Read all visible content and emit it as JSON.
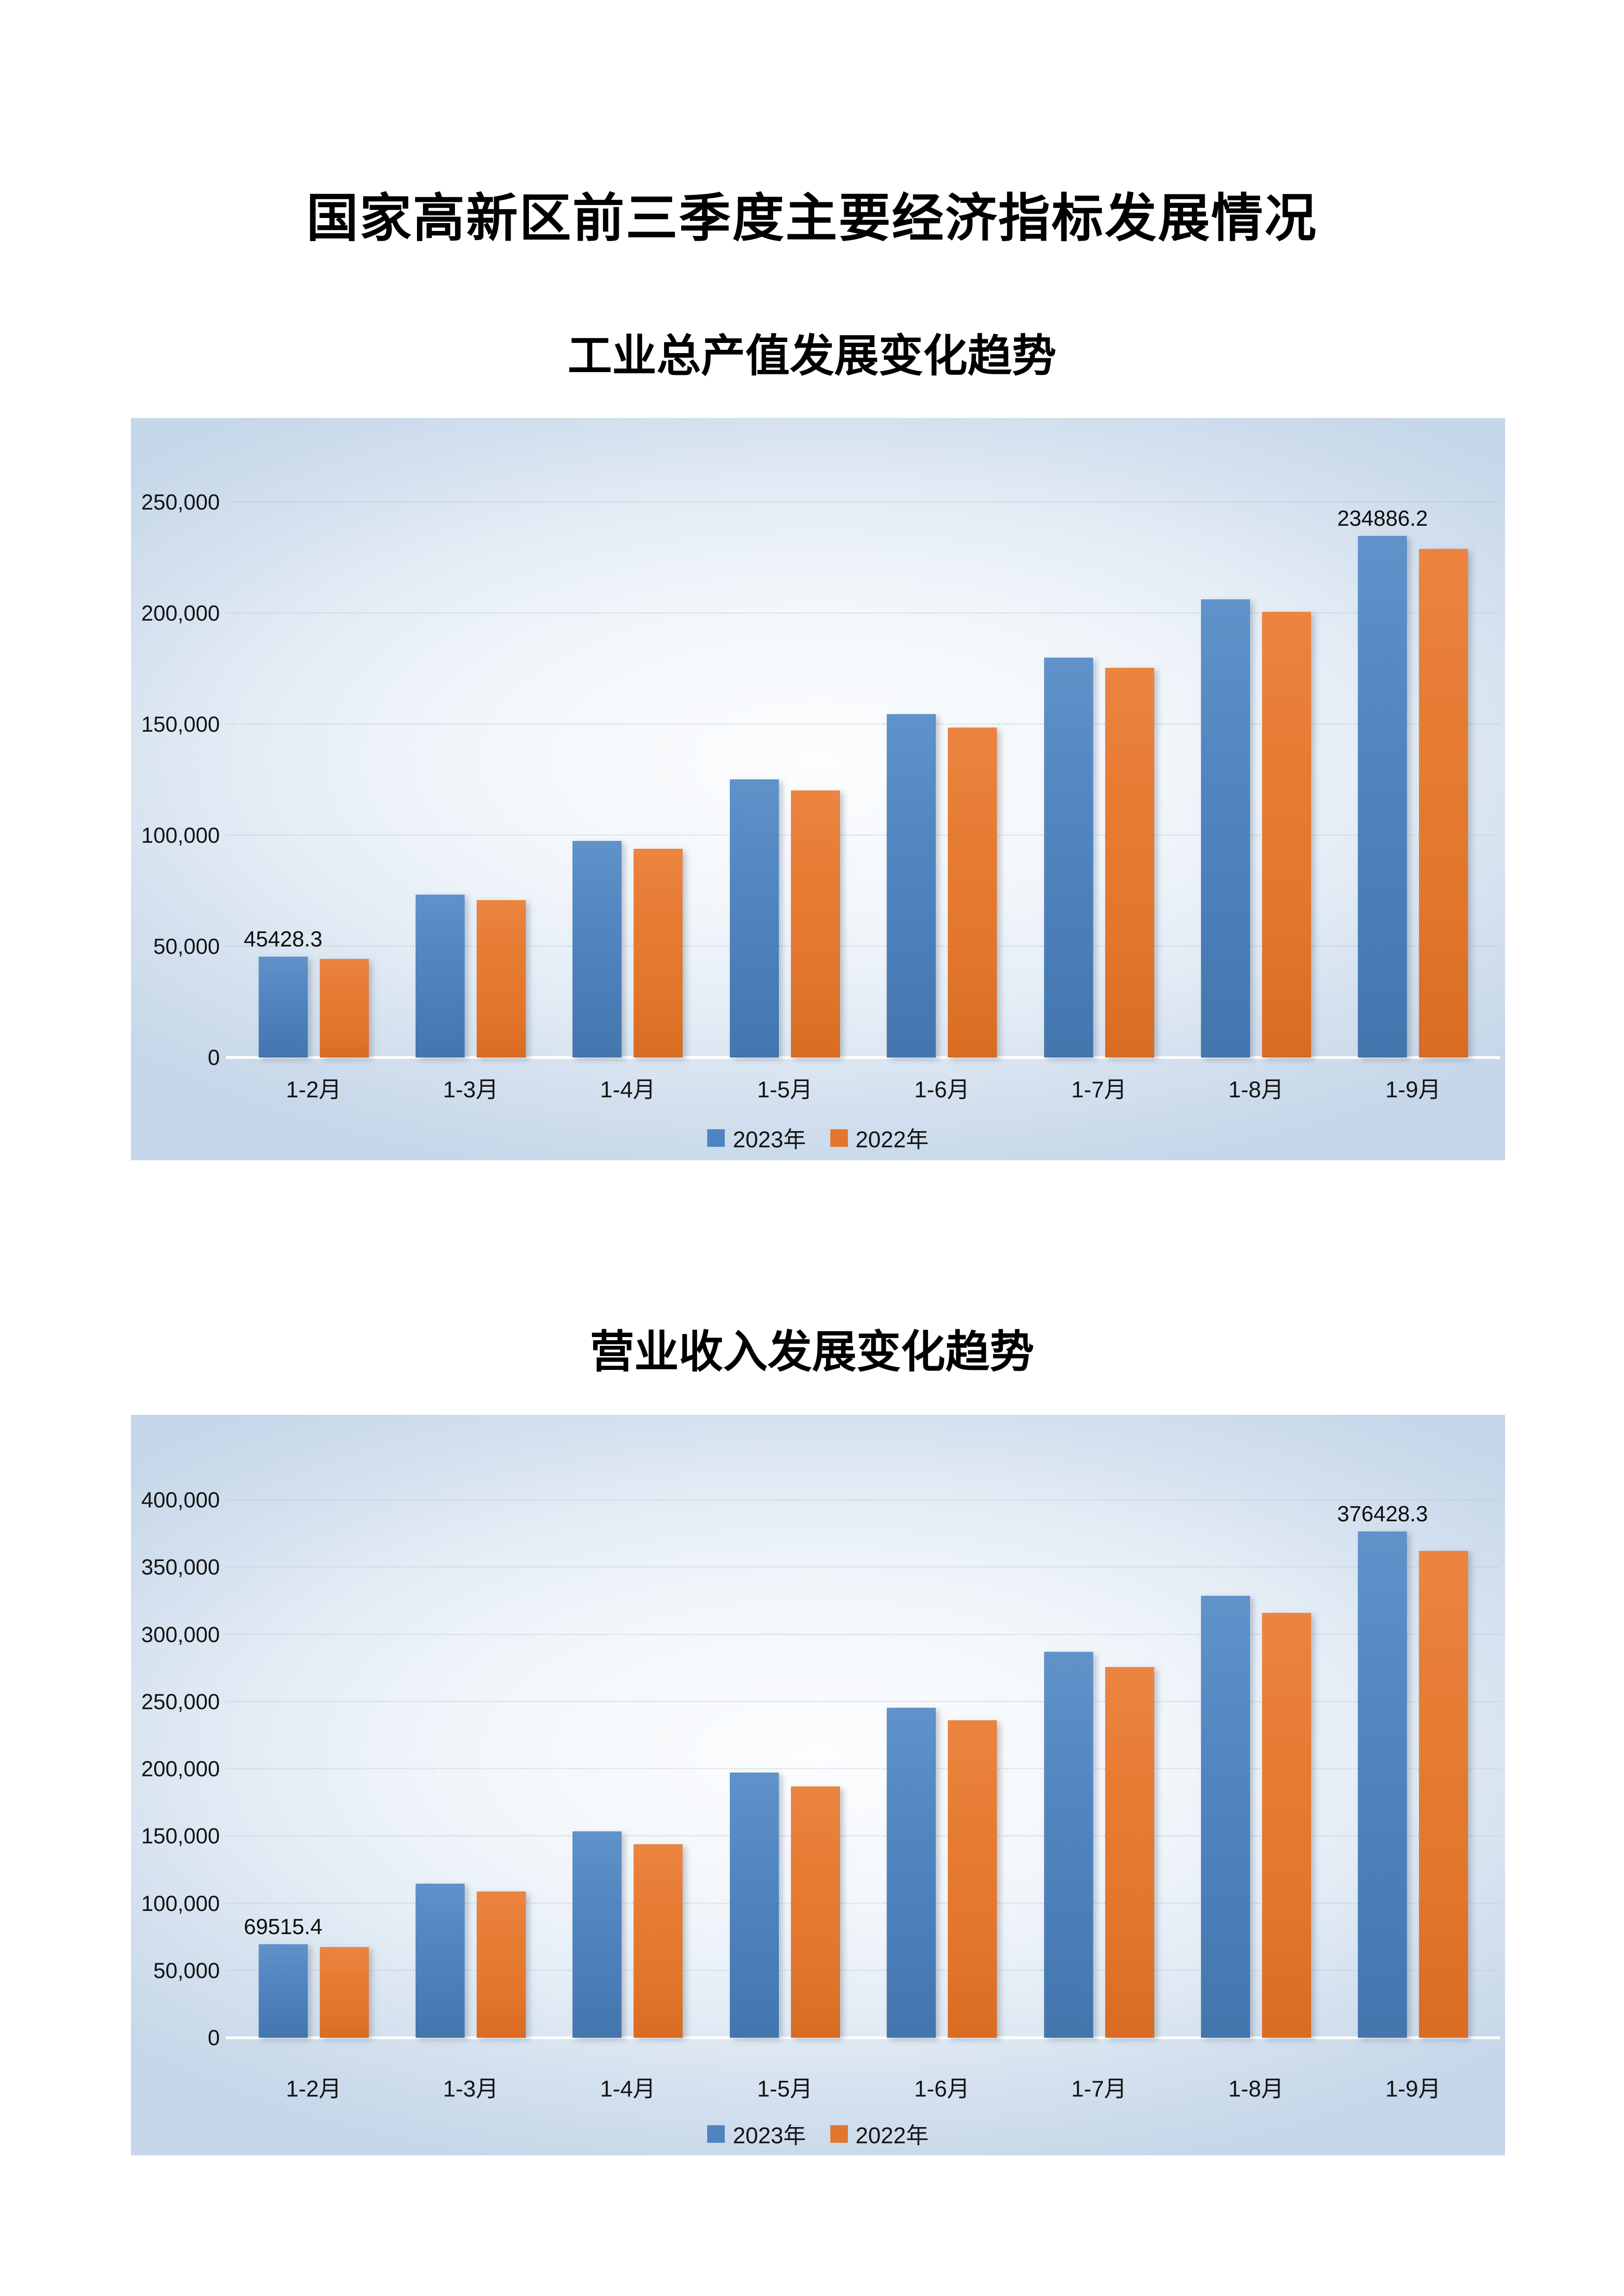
{
  "page": {
    "title": "国家高新区前三季度主要经济指标发展情况"
  },
  "chart_data": [
    {
      "type": "bar",
      "title": "工业总产值发展变化趋势",
      "categories": [
        "1-2月",
        "1-3月",
        "1-4月",
        "1-5月",
        "1-6月",
        "1-7月",
        "1-8月",
        "1-9月"
      ],
      "series": [
        {
          "name": "2023年",
          "color": "#4E84C0",
          "values": [
            45428.3,
            73400,
            97600,
            125300,
            154500,
            180100,
            206300,
            234886.2
          ]
        },
        {
          "name": "2022年",
          "color": "#E3762D",
          "values": [
            44300,
            70800,
            93900,
            120300,
            148600,
            175400,
            200700,
            228900
          ]
        }
      ],
      "data_labels": [
        {
          "series": 0,
          "category_index": 0,
          "text": "45428.3"
        },
        {
          "series": 0,
          "category_index": 7,
          "text": "234886.2"
        }
      ],
      "ylim": [
        0,
        250000
      ],
      "yticks": [
        "0",
        "50,000",
        "100,000",
        "150,000",
        "200,000",
        "250,000"
      ],
      "grid": true,
      "legend_position": "bottom"
    },
    {
      "type": "bar",
      "title": "营业收入发展变化趋势",
      "categories": [
        "1-2月",
        "1-3月",
        "1-4月",
        "1-5月",
        "1-6月",
        "1-7月",
        "1-8月",
        "1-9月"
      ],
      "series": [
        {
          "name": "2023年",
          "color": "#4E84C0",
          "values": [
            69515.4,
            114500,
            153600,
            197200,
            245600,
            287100,
            328600,
            376428.3
          ]
        },
        {
          "name": "2022年",
          "color": "#E3762D",
          "values": [
            67600,
            108900,
            143800,
            187000,
            236200,
            275600,
            315900,
            362000
          ]
        }
      ],
      "data_labels": [
        {
          "series": 0,
          "category_index": 0,
          "text": "69515.4"
        },
        {
          "series": 0,
          "category_index": 7,
          "text": "376428.3"
        }
      ],
      "ylim": [
        0,
        400000
      ],
      "yticks": [
        "0",
        "50,000",
        "100,000",
        "150,000",
        "200,000",
        "250,000",
        "300,000",
        "350,000",
        "400,000"
      ],
      "grid": true,
      "legend_position": "bottom"
    }
  ]
}
